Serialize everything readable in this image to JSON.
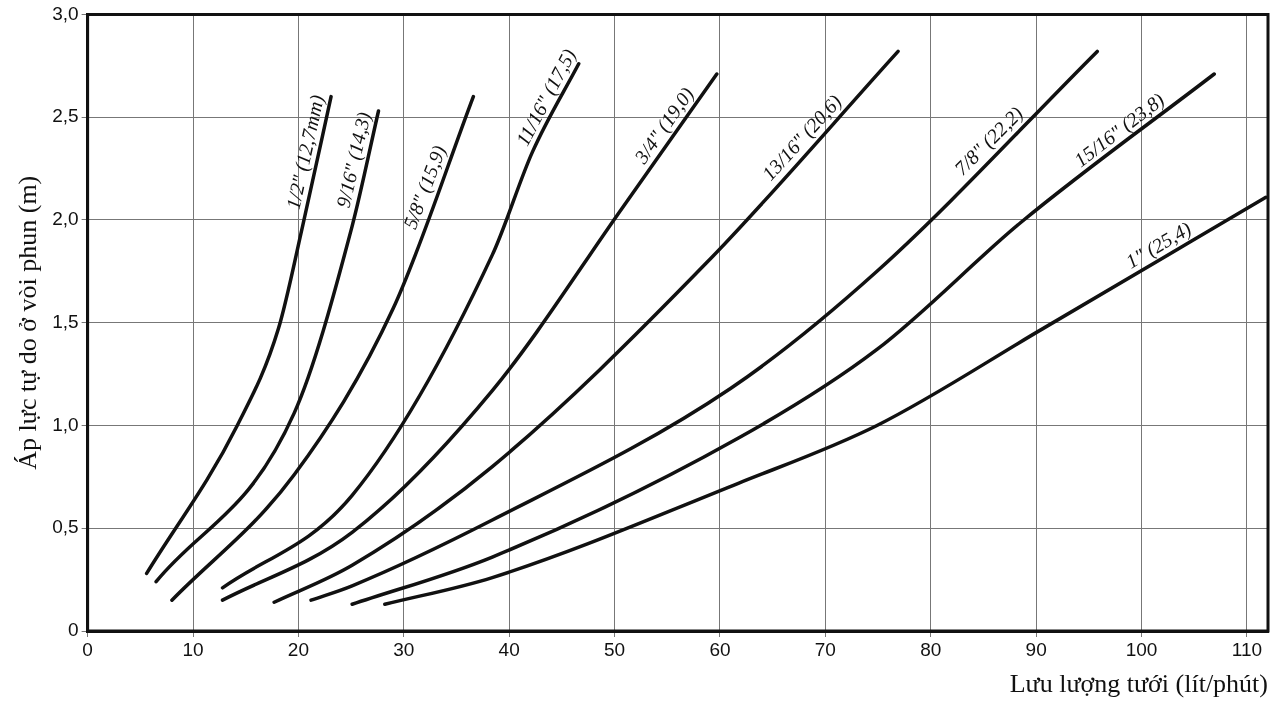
{
  "chart_data": {
    "type": "line",
    "xlabel": "Lưu lượng tưới (lít/phút)",
    "ylabel": "Áp lực tự do ở vòi phun (m)",
    "xlim": [
      0,
      112
    ],
    "xticks": [
      0,
      10,
      20,
      30,
      40,
      50,
      60,
      70,
      80,
      90,
      100,
      110
    ],
    "ylim": [
      0,
      3
    ],
    "yticks": [
      {
        "value": 0,
        "label": "0"
      },
      {
        "value": 0.5,
        "label": "0,5"
      },
      {
        "value": 1,
        "label": "1,0"
      },
      {
        "value": 1.5,
        "label": "1,5"
      },
      {
        "value": 2,
        "label": "2,0"
      },
      {
        "value": 2.5,
        "label": "2,5"
      },
      {
        "value": 3,
        "label": "3,0"
      }
    ],
    "grid": true,
    "legend": false,
    "marker": "none",
    "line_style": "solid",
    "series": [
      {
        "name": "1/2\" (12,7mm)",
        "color": "#111111",
        "x": [
          5.6,
          14.2,
          18.1,
          20.4,
          23.1
        ],
        "values": [
          0.28,
          1.0,
          1.47,
          1.97,
          2.6
        ]
      },
      {
        "name": "9/16\" (14,3)",
        "color": "#111111",
        "x": [
          6.5,
          19.6,
          25.1,
          27.6
        ],
        "values": [
          0.24,
          1.06,
          1.97,
          2.53
        ]
      },
      {
        "name": "5/8\" (15,9)",
        "color": "#111111",
        "x": [
          8.0,
          19.6,
          29.0,
          36.6
        ],
        "values": [
          0.15,
          0.76,
          1.57,
          2.6
        ]
      },
      {
        "name": "11/16\" (17,5)",
        "color": "#111111",
        "x": [
          12.8,
          25.1,
          38.4,
          42.2,
          46.6
        ],
        "values": [
          0.21,
          0.66,
          1.83,
          2.33,
          2.76
        ]
      },
      {
        "name": "3/4\" (19,0)",
        "color": "#111111",
        "x": [
          12.8,
          25.1,
          38.4,
          50.9,
          59.7
        ],
        "values": [
          0.15,
          0.48,
          1.17,
          2.07,
          2.71
        ]
      },
      {
        "name": "13/16\" (20,6)",
        "color": "#111111",
        "x": [
          17.7,
          25.1,
          38.4,
          58.7,
          76.9
        ],
        "values": [
          0.14,
          0.32,
          0.8,
          1.79,
          2.82
        ]
      },
      {
        "name": "7/8\" (22,2)",
        "color": "#111111",
        "x": [
          21.2,
          25.1,
          38.4,
          61.0,
          74.9,
          95.8
        ],
        "values": [
          0.15,
          0.22,
          0.54,
          1.18,
          1.75,
          2.82
        ]
      },
      {
        "name": "15/16\" (23,8)",
        "color": "#111111",
        "x": [
          25.1,
          38.4,
          61.8,
          74.9,
          88.6,
          106.9
        ],
        "values": [
          0.13,
          0.36,
          0.94,
          1.37,
          1.99,
          2.71
        ]
      },
      {
        "name": "1\" (25,4)",
        "color": "#111111",
        "x": [
          28.2,
          38.4,
          61.8,
          74.9,
          90.6,
          111.8
        ],
        "values": [
          0.13,
          0.26,
          0.72,
          1.0,
          1.47,
          2.11
        ]
      }
    ]
  }
}
